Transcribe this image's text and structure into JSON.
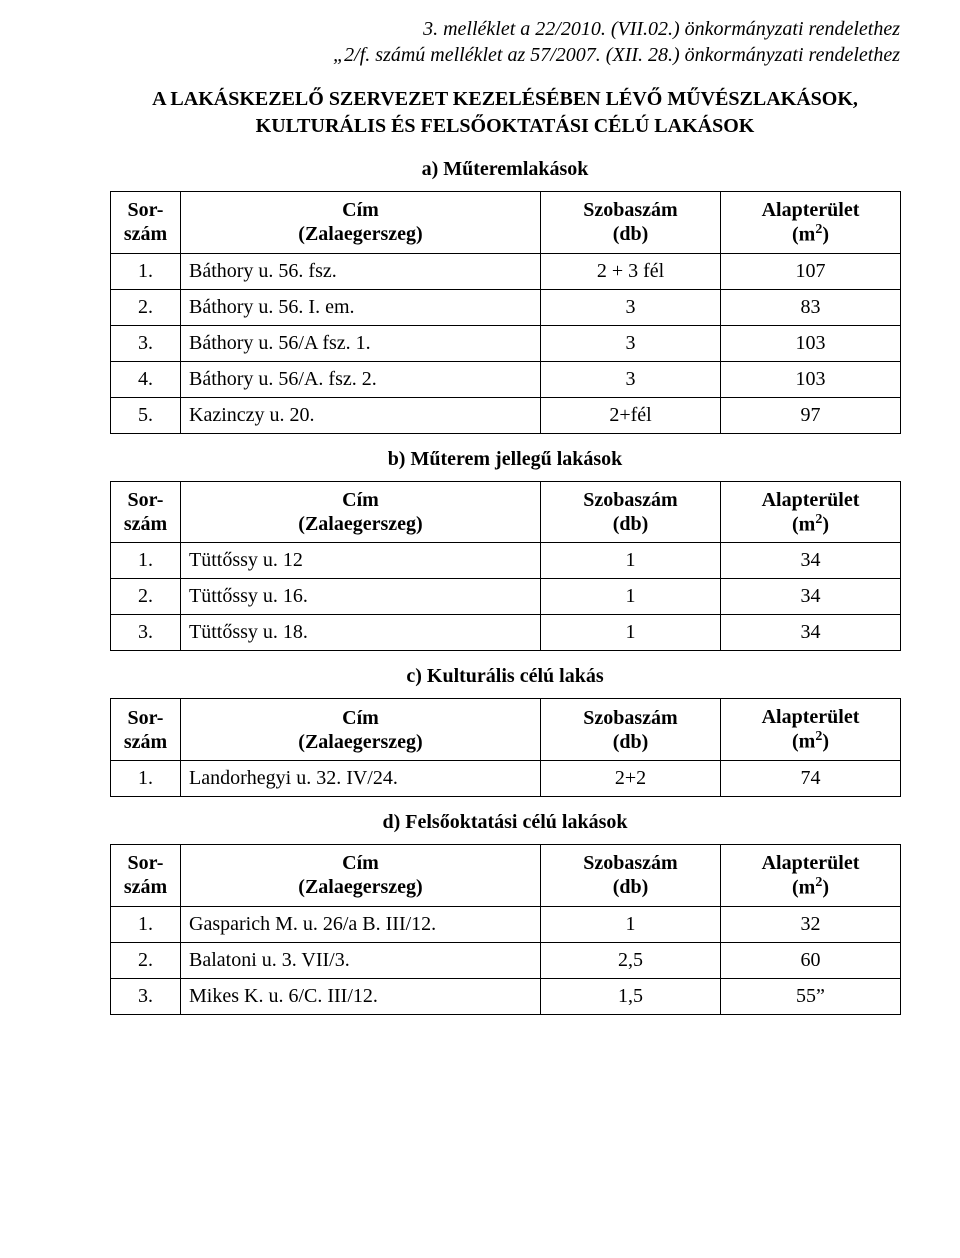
{
  "header": {
    "line1": "3. melléklet a 22/2010. (VII.02.) önkormányzati rendelethez",
    "line2": "„2/f. számú melléklet az 57/2007. (XII. 28.) önkormányzati rendelethez"
  },
  "main_title": {
    "line1": "A LAKÁSKEZELŐ SZERVEZET KEZELÉSÉBEN LÉVŐ MŰVÉSZLAKÁSOK,",
    "line2": "KULTURÁLIS ÉS FELSŐOKTATÁSI CÉLÚ LAKÁSOK"
  },
  "columns": {
    "sor_l1": "Sor-",
    "sor_l2": "szám",
    "cim_l1": "Cím",
    "cim_l2": "(Zalaegerszeg)",
    "szoba_l1": "Szobaszám",
    "szoba_l2": "(db)",
    "alap_l1": "Alapterület",
    "alap_l2_pre": "(m",
    "alap_l2_sup": "2",
    "alap_l2_post": ")"
  },
  "sections": {
    "a": {
      "title": "a) Műteremlakások",
      "rows": [
        {
          "n": "1.",
          "addr": "Báthory u. 56. fsz.",
          "db": "2 + 3 fél",
          "area": "107"
        },
        {
          "n": "2.",
          "addr": "Báthory u. 56. I. em.",
          "db": "3",
          "area": "83"
        },
        {
          "n": "3.",
          "addr": "Báthory u. 56/A fsz. 1.",
          "db": "3",
          "area": "103"
        },
        {
          "n": "4.",
          "addr": "Báthory u. 56/A. fsz. 2.",
          "db": "3",
          "area": "103"
        },
        {
          "n": "5.",
          "addr": "Kazinczy u. 20.",
          "db": "2+fél",
          "area": "97"
        }
      ]
    },
    "b": {
      "title": "b) Műterem jellegű lakások",
      "rows": [
        {
          "n": "1.",
          "addr": "Tüttőssy u. 12",
          "db": "1",
          "area": "34"
        },
        {
          "n": "2.",
          "addr": "Tüttőssy u. 16.",
          "db": "1",
          "area": "34"
        },
        {
          "n": "3.",
          "addr": "Tüttőssy u. 18.",
          "db": "1",
          "area": "34"
        }
      ]
    },
    "c": {
      "title": "c) Kulturális célú lakás",
      "rows": [
        {
          "n": "1.",
          "addr": "Landorhegyi u. 32. IV/24.",
          "db": "2+2",
          "area": "74"
        }
      ]
    },
    "d": {
      "title": "d) Felsőoktatási célú lakások",
      "rows": [
        {
          "n": "1.",
          "addr": "Gasparich M. u. 26/a B. III/12.",
          "db": "1",
          "area": "32"
        },
        {
          "n": "2.",
          "addr": "Balatoni u. 3. VII/3.",
          "db": "2,5",
          "area": "60"
        },
        {
          "n": "3.",
          "addr": "Mikes K. u. 6/C. III/12.",
          "db": "1,5",
          "area": "55”"
        }
      ]
    }
  }
}
